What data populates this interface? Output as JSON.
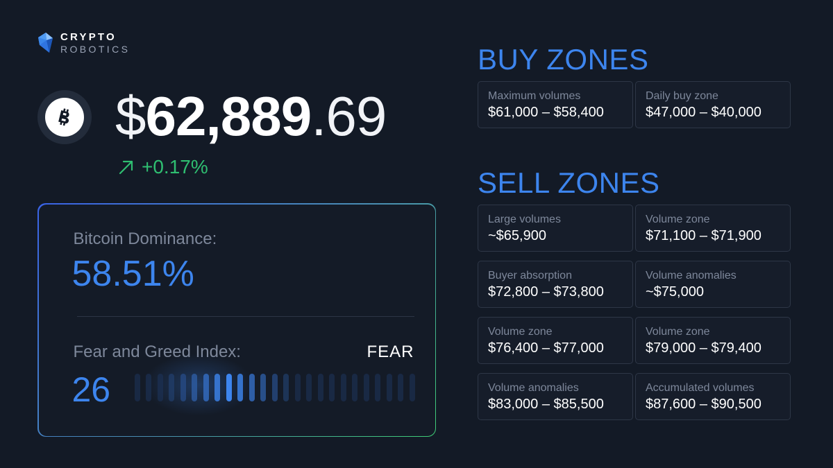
{
  "brand": {
    "line1": "CRYPTO",
    "line2": "ROBOTICS",
    "logo_icon": "crystal-logo-icon"
  },
  "ticker": {
    "coin_icon": "bitcoin-icon",
    "price_symbol": "$",
    "price_major": "62,889",
    "price_minor": ".69",
    "change_icon": "arrow-up-right-icon",
    "change": "+0.17%",
    "change_color": "#2fbf71"
  },
  "stats": {
    "dominance_label": "Bitcoin Dominance:",
    "dominance_value": "58.51%",
    "fear_greed_label": "Fear and Greed Index:",
    "fear_greed_value": "26",
    "fear_greed_status": "FEAR",
    "accent": "#3d85ee"
  },
  "buy_zones": {
    "title": "BUY ZONES",
    "items": [
      {
        "label": "Maximum volumes",
        "value": "$61,000 – $58,400"
      },
      {
        "label": "Daily buy zone",
        "value": "$47,000 – $40,000"
      }
    ]
  },
  "sell_zones": {
    "title": "SELL ZONES",
    "items": [
      {
        "label": "Large volumes",
        "value": "~$65,900"
      },
      {
        "label": "Volume zone",
        "value": "$71,100 – $71,900"
      },
      {
        "label": "Buyer absorption",
        "value": "$72,800 – $73,800"
      },
      {
        "label": "Volume anomalies",
        "value": "~$75,000"
      },
      {
        "label": "Volume zone",
        "value": "$76,400 – $77,000"
      },
      {
        "label": "Volume zone",
        "value": "$79,000 – $79,400"
      },
      {
        "label": "Volume anomalies",
        "value": "$83,000 – $85,500"
      },
      {
        "label": "Accumulated volumes",
        "value": "$87,600 – $90,500"
      }
    ]
  }
}
